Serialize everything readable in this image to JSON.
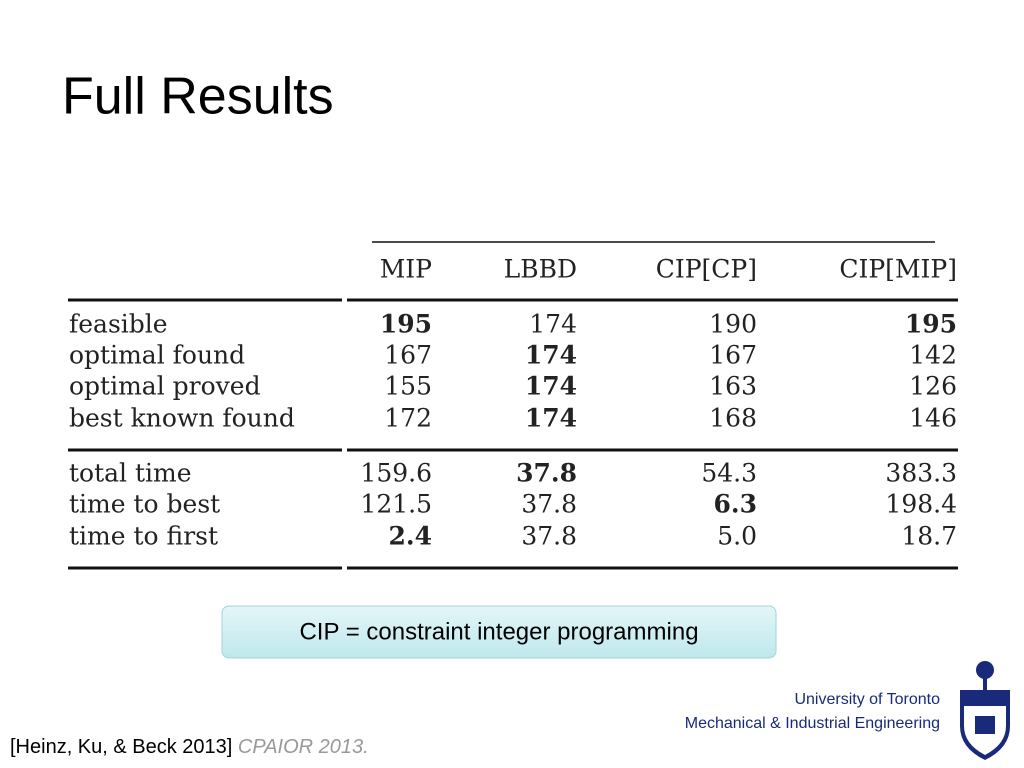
{
  "title": "Full Results",
  "table": {
    "header": [
      "MIP",
      "LBBD",
      "CIP[CP]",
      "CIP[MIP]"
    ],
    "rows": [
      [
        "feasible",
        "195",
        "174",
        "190",
        "195"
      ],
      [
        "optimal found",
        "167",
        "174",
        "167",
        "142"
      ],
      [
        "optimal proved",
        "155",
        "174",
        "163",
        "126"
      ],
      [
        "best known found",
        "172",
        "174",
        "168",
        "146"
      ],
      [
        "total time",
        "159.6",
        "37.8",
        "54.3",
        "383.3"
      ],
      [
        "time to best",
        "121.5",
        "37.8",
        "6.3",
        "198.4"
      ],
      [
        "time to first",
        "2.4",
        "37.8",
        "5.0",
        "18.7"
      ]
    ]
  },
  "note": "CIP = constraint integer programming",
  "affiliation": [
    "University of Toronto",
    "Mechanical & Industrial Engineering"
  ],
  "citation": {
    "authors": "[Heinz, Ku, & Beck 2013]",
    "venue": "CPAIOR 2013."
  }
}
